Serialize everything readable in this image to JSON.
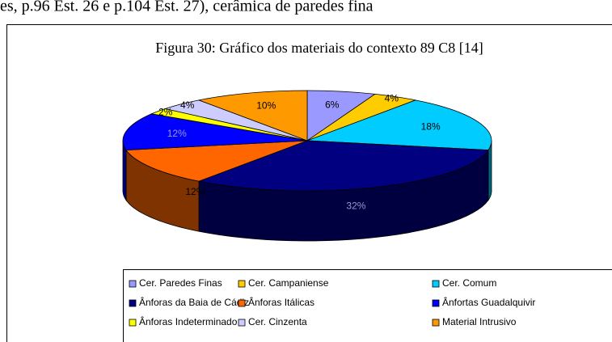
{
  "header_text": "es, p.96 Est. 26 e p.104 Est. 27), cerâmica de paredes fina",
  "chart_data": {
    "type": "pie",
    "title": "Figura 30: Gráfico dos materiais do contexto 89 C8 [14]",
    "categories": [
      "Cer. Paredes Finas",
      "Cer. Campaniense",
      "Cer. Comum",
      "Ânforas da Baia de Cádiz",
      "Ânforas Itálicas",
      "Ânfortas Guadalquivir",
      "Ânforas Indeterminado",
      "Cer. Cinzenta",
      "Material Intrusivo"
    ],
    "values": [
      6,
      4,
      18,
      32,
      12,
      12,
      2,
      4,
      10
    ],
    "value_labels": [
      "6%",
      "4%",
      "18%",
      "32%",
      "12%",
      "12%",
      "2%",
      "4%",
      "10%"
    ],
    "colors": [
      "#9999ff",
      "#ffcc00",
      "#00ccff",
      "#000080",
      "#ff6600",
      "#0000ff",
      "#ffff00",
      "#ccccff",
      "#ff9900"
    ],
    "legend": "bottom"
  }
}
